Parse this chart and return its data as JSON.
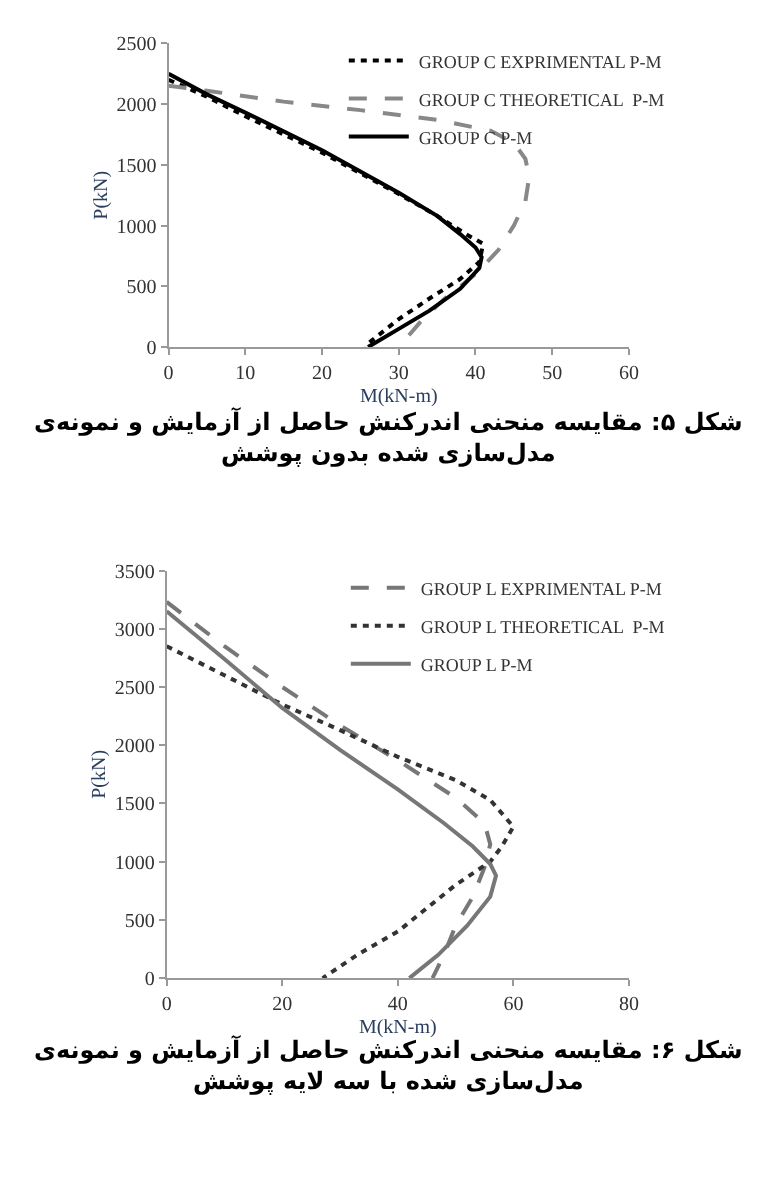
{
  "chart_data": [
    {
      "type": "line",
      "xlabel": "M(kN-m)",
      "ylabel": "P(kN)",
      "xlim": [
        0,
        60
      ],
      "xticks": [
        0,
        10,
        20,
        30,
        40,
        50,
        60
      ],
      "ylim": [
        0,
        2500
      ],
      "yticks": [
        0,
        500,
        1000,
        1500,
        2000,
        2500
      ],
      "grid": false,
      "legend": "top right",
      "marker": "none",
      "annotations": [
        "شکل ۵: مقایسه منحنی اندرکنش حاصل از آزمایش و نمونه‌ی\nمدل‌سازی شده بدون پوشش"
      ],
      "series": [
        {
          "name": "GROUP C EXPRIMENTAL P-M",
          "color": "#000000",
          "line_style": "dotted",
          "x": [
            0,
            5,
            10,
            20,
            30,
            35,
            39,
            41,
            40.5,
            38,
            34,
            30,
            26,
            25.7
          ],
          "values": [
            2200,
            2060,
            1900,
            1600,
            1260,
            1080,
            920,
            850,
            700,
            560,
            400,
            230,
            30,
            0
          ]
        },
        {
          "name": "GROUP C THEORETICAL  P-M",
          "color": "#888888",
          "line_style": "dashed",
          "x": [
            0,
            5,
            15,
            25,
            35,
            42,
            45,
            46.5,
            47,
            46.5,
            45,
            43,
            40,
            36,
            33,
            30
          ],
          "values": [
            2150,
            2110,
            2020,
            1950,
            1870,
            1780,
            1680,
            1550,
            1400,
            1200,
            1000,
            800,
            600,
            400,
            220,
            0
          ]
        },
        {
          "name": "GROUP C P-M",
          "color": "#000000",
          "line_style": "solid",
          "x": [
            0,
            5,
            10,
            20,
            30,
            35,
            38,
            40,
            40.8,
            40.5,
            38,
            34,
            30,
            26
          ],
          "values": [
            2250,
            2080,
            1930,
            1620,
            1270,
            1080,
            930,
            820,
            740,
            650,
            480,
            300,
            150,
            0
          ]
        }
      ]
    },
    {
      "type": "line",
      "xlabel": "M(kN-m)",
      "ylabel": "P(kN)",
      "xlim": [
        0,
        80
      ],
      "xticks": [
        0,
        20,
        40,
        60,
        80
      ],
      "ylim": [
        0,
        3500
      ],
      "yticks": [
        0,
        500,
        1000,
        1500,
        2000,
        2500,
        3000,
        3500
      ],
      "grid": false,
      "legend": "top right",
      "marker": "none",
      "annotations": [
        "شکل ۶: مقایسه منحنی اندرکنش حاصل از آزمایش و نمونه‌ی\nمدل‌سازی شده با سه لایه پوشش"
      ],
      "series": [
        {
          "name": "GROUP L EXPRIMENTAL P-M",
          "color": "#777777",
          "line_style": "dashed",
          "x": [
            0,
            10,
            20,
            30,
            40,
            50,
            55,
            56,
            55,
            53,
            50,
            48,
            46
          ],
          "values": [
            3230,
            2850,
            2500,
            2170,
            1870,
            1550,
            1330,
            1150,
            950,
            700,
            450,
            200,
            0
          ]
        },
        {
          "name": "GROUP L THEORETICAL  P-M",
          "color": "#333333",
          "line_style": "dotted",
          "x": [
            0,
            10,
            20,
            30,
            40,
            50,
            56,
            60,
            58,
            56,
            50,
            45,
            40,
            33,
            27
          ],
          "values": [
            2850,
            2600,
            2350,
            2130,
            1900,
            1700,
            1530,
            1300,
            1130,
            1000,
            800,
            600,
            400,
            200,
            0
          ]
        },
        {
          "name": "GROUP L P-M",
          "color": "#777777",
          "line_style": "solid",
          "x": [
            0,
            10,
            20,
            30,
            40,
            48,
            53,
            56,
            57,
            56,
            52,
            47,
            42
          ],
          "values": [
            3150,
            2740,
            2320,
            1960,
            1620,
            1330,
            1130,
            980,
            880,
            700,
            450,
            200,
            0
          ]
        }
      ]
    }
  ]
}
